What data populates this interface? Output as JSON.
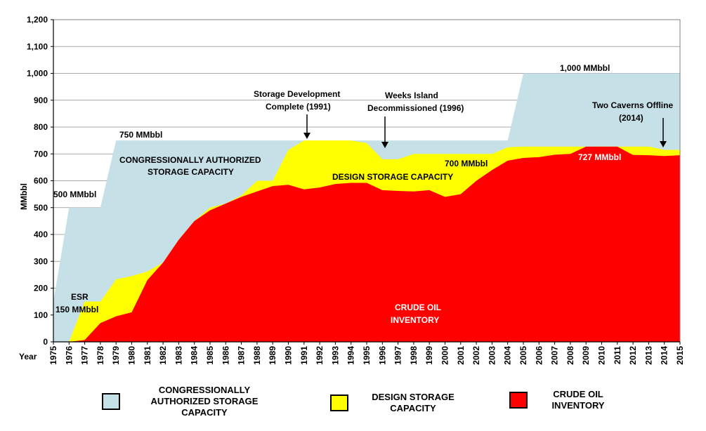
{
  "chart_data": {
    "type": "area",
    "ylabel": "MMbbl",
    "xlabel": "Year",
    "ylim": [
      0,
      1200
    ],
    "yticks": [
      0,
      100,
      200,
      300,
      400,
      500,
      600,
      700,
      800,
      900,
      1000,
      1100,
      1200
    ],
    "ytick_labels": [
      "0",
      "100",
      "200",
      "300",
      "400",
      "500",
      "600",
      "700",
      "800",
      "900",
      "1,000",
      "1,100",
      "1,200"
    ],
    "x": [
      1975,
      1976,
      1977,
      1978,
      1979,
      1980,
      1981,
      1982,
      1983,
      1984,
      1985,
      1986,
      1987,
      1988,
      1989,
      1990,
      1991,
      1992,
      1993,
      1994,
      1995,
      1996,
      1997,
      1998,
      1999,
      2000,
      2001,
      2002,
      2003,
      2004,
      2005,
      2006,
      2007,
      2008,
      2009,
      2010,
      2011,
      2012,
      2013,
      2014,
      2015
    ],
    "x_labels": [
      "1975",
      "1976",
      "1977",
      "1978",
      "1979",
      "1980",
      "1981",
      "1982",
      "1983",
      "1984",
      "1985",
      "1986",
      "1987",
      "1988",
      "1989",
      "1990",
      "1991",
      "1992",
      "1993",
      "1994",
      "1995",
      "1996",
      "1997",
      "1998",
      "1999",
      "2000",
      "2001",
      "2002",
      "2003",
      "2004",
      "2005",
      "2006",
      "2007",
      "2008",
      "2009",
      "2010",
      "2011",
      "2012",
      "2013",
      "2014",
      "2015"
    ],
    "grid": true,
    "series": [
      {
        "name": "CONGRESSIONALLY AUTHORIZED STORAGE CAPACITY",
        "color": "#c5e0e6",
        "values": [
          150,
          500,
          500,
          500,
          750,
          750,
          750,
          750,
          750,
          750,
          750,
          750,
          750,
          750,
          750,
          750,
          750,
          750,
          750,
          750,
          750,
          750,
          750,
          750,
          750,
          750,
          750,
          750,
          750,
          750,
          1000,
          1000,
          1000,
          1000,
          1000,
          1000,
          1000,
          1000,
          1000,
          1000,
          1000
        ]
      },
      {
        "name": "DESIGN STORAGE CAPACITY",
        "color": "#ffff00",
        "values": [
          0,
          0,
          150,
          150,
          233,
          245,
          262,
          295,
          380,
          450,
          500,
          515,
          545,
          600,
          600,
          715,
          750,
          750,
          750,
          750,
          740,
          680,
          680,
          700,
          700,
          700,
          700,
          700,
          700,
          725,
          727,
          727,
          727,
          727,
          727,
          727,
          727,
          727,
          727,
          715,
          715
        ]
      },
      {
        "name": "CRUDE OIL INVENTORY",
        "color": "#ff0000",
        "values": [
          0,
          0,
          7,
          70,
          95,
          110,
          230,
          295,
          380,
          450,
          490,
          515,
          540,
          560,
          580,
          585,
          568,
          575,
          588,
          592,
          592,
          565,
          562,
          560,
          565,
          540,
          550,
          600,
          640,
          675,
          685,
          688,
          697,
          700,
          727,
          727,
          727,
          696,
          695,
          692,
          695
        ]
      }
    ],
    "annotations": {
      "cap_150": "150 MMbbl",
      "esr": "ESR",
      "cap_500": "500 MMbbl",
      "cap_750": "750 MMbbl",
      "cap_1000": "1,000 MMbbl",
      "cap_700": "700 MMbbl",
      "cap_727": "727 MMbbl",
      "authorized_line1": "CONGRESSIONALLY AUTHORIZED",
      "authorized_line2": "STORAGE CAPACITY",
      "design_label": "DESIGN STORAGE CAPACITY",
      "crude_line1": "CRUDE OIL",
      "crude_line2": "INVENTORY",
      "dev_line1": "Storage Development",
      "dev_line2": "Complete (1991)",
      "weeks_line1": "Weeks Island",
      "weeks_line2": "Decommissioned (1996)",
      "caverns_line1": "Two Caverns Offline",
      "caverns_line2": "(2014)"
    },
    "legend": [
      {
        "label_lines": [
          "CONGRESSIONALLY",
          "AUTHORIZED STORAGE",
          "CAPACITY"
        ],
        "color": "#c5e0e6"
      },
      {
        "label_lines": [
          "DESIGN STORAGE",
          "CAPACITY"
        ],
        "color": "#ffff00"
      },
      {
        "label_lines": [
          "CRUDE OIL",
          "INVENTORY"
        ],
        "color": "#ff0000"
      }
    ],
    "legend_position": "bottom"
  }
}
